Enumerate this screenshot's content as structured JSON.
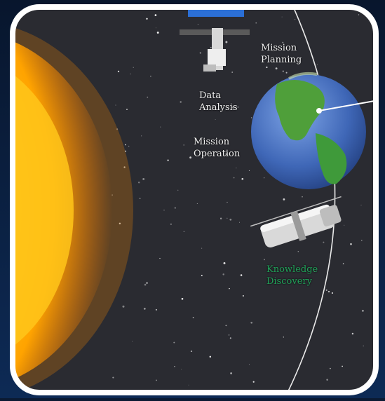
{
  "labels": {
    "mission_planning": "Mission\nPlanning",
    "data_analysis": "Data\nAnalysis",
    "mission_operation": "Mission\nOperation",
    "knowledge_discovery": "Knowledge\nDiscovery"
  },
  "colors": {
    "panel_bg": "#2a2b31",
    "panel_border": "#ffffff",
    "outer_bg": "#0b1a33",
    "sun_core": "#ffd21a",
    "sun_edge": "#ff8a00",
    "earth_ocean": "#3f67b7",
    "earth_land": "#3f9a3a",
    "label_text": "#f2f2f2",
    "discovery_text": "#21a35a",
    "orbit_line": "#e9e9e9"
  },
  "icons": {
    "sun": "sun-icon",
    "earth": "earth-icon",
    "satellite": "satellite-icon",
    "telescope": "space-telescope-icon"
  }
}
